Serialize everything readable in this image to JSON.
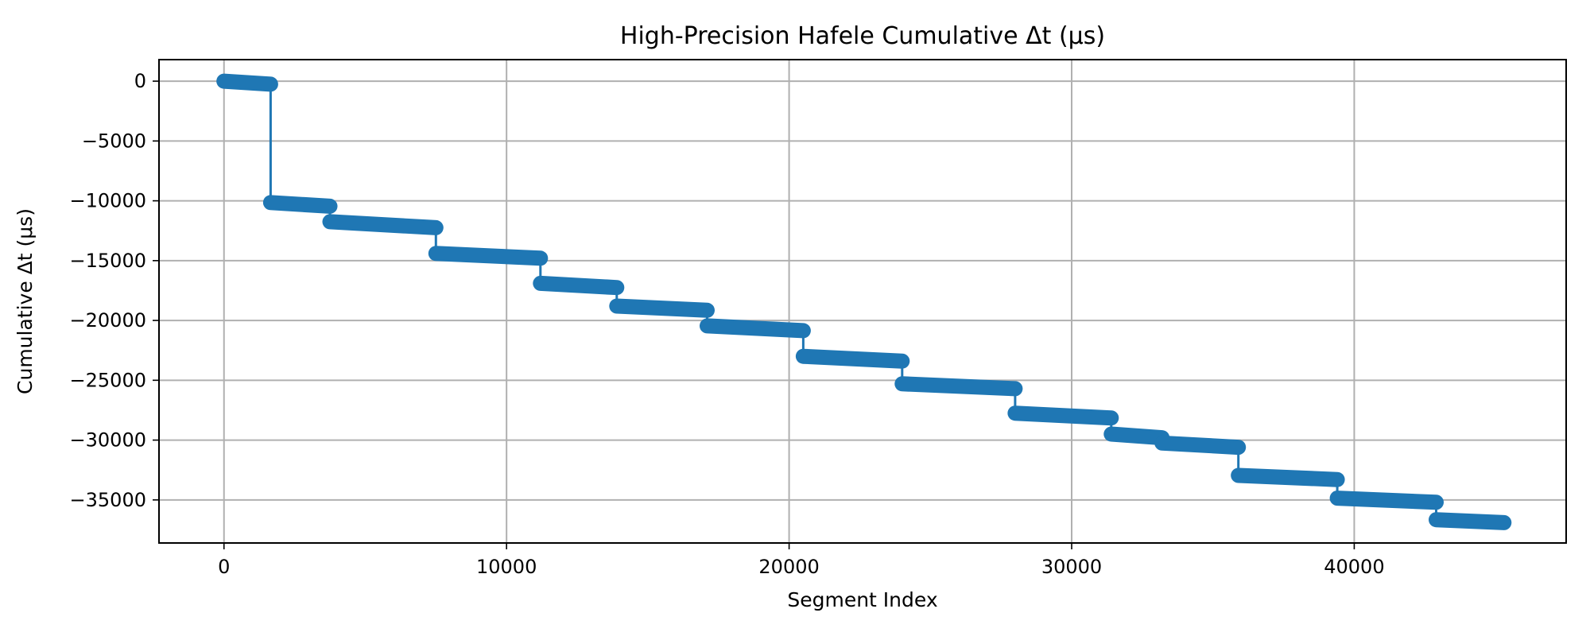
{
  "chart_data": {
    "type": "line",
    "title": "High-Precision Hafele Cumulative Δt (μs)",
    "xlabel": "Segment Index",
    "ylabel": "Cumulative Δt (μs)",
    "xlim": [
      -2300,
      47500
    ],
    "ylim": [
      -38600,
      1800
    ],
    "xticks": [
      0,
      10000,
      20000,
      30000,
      40000
    ],
    "yticks": [
      0,
      -5000,
      -10000,
      -15000,
      -20000,
      -25000,
      -30000,
      -35000
    ],
    "xtick_labels": [
      "0",
      "10000",
      "20000",
      "30000",
      "40000"
    ],
    "ytick_labels": [
      "0",
      "−5000",
      "−10000",
      "−15000",
      "−20000",
      "−25000",
      "−30000",
      "−35000"
    ],
    "grid": true,
    "marker": "circle",
    "series": [
      {
        "color": "#1f77b4",
        "segments": [
          {
            "x": [
              0,
              1650
            ],
            "y": [
              0,
              -250
            ]
          },
          {
            "x": [
              1650,
              3750
            ],
            "y": [
              -10150,
              -10450
            ]
          },
          {
            "x": [
              3750,
              7500
            ],
            "y": [
              -11750,
              -12250
            ]
          },
          {
            "x": [
              7500,
              11200
            ],
            "y": [
              -14400,
              -14800
            ]
          },
          {
            "x": [
              11200,
              13900
            ],
            "y": [
              -16900,
              -17250
            ]
          },
          {
            "x": [
              13900,
              17100
            ],
            "y": [
              -18800,
              -19150
            ]
          },
          {
            "x": [
              17100,
              20500
            ],
            "y": [
              -20450,
              -20850
            ]
          },
          {
            "x": [
              20500,
              24000
            ],
            "y": [
              -23000,
              -23400
            ]
          },
          {
            "x": [
              24000,
              28000
            ],
            "y": [
              -25300,
              -25700
            ]
          },
          {
            "x": [
              28000,
              31400
            ],
            "y": [
              -27750,
              -28150
            ]
          },
          {
            "x": [
              31400,
              33200
            ],
            "y": [
              -29500,
              -29800
            ]
          },
          {
            "x": [
              33200,
              35900
            ],
            "y": [
              -30250,
              -30600
            ]
          },
          {
            "x": [
              35900,
              39400
            ],
            "y": [
              -32950,
              -33300
            ]
          },
          {
            "x": [
              39400,
              42900
            ],
            "y": [
              -34850,
              -35200
            ]
          },
          {
            "x": [
              42900,
              45300
            ],
            "y": [
              -36650,
              -36900
            ]
          }
        ]
      }
    ]
  }
}
